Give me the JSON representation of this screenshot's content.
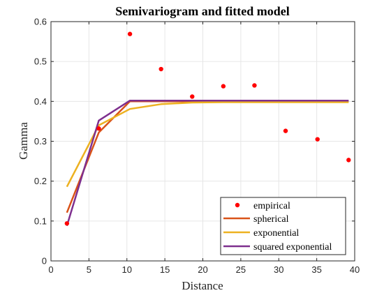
{
  "chart_data": {
    "type": "line",
    "title": "Semivariogram and fitted model",
    "xlabel": "Distance",
    "ylabel": "Gamma",
    "xlim": [
      0,
      40
    ],
    "ylim": [
      0,
      0.6
    ],
    "xticks": [
      "0",
      "5",
      "10",
      "15",
      "20",
      "25",
      "30",
      "35",
      "40"
    ],
    "yticks": [
      "0",
      "0.1",
      "0.2",
      "0.3",
      "0.4",
      "0.5",
      "0.6"
    ],
    "grid": true,
    "legend_position": "bottom-right",
    "empirical": {
      "name": "empirical",
      "color": "#ff0000",
      "x": [
        2.1,
        6.3,
        10.4,
        14.5,
        18.6,
        22.7,
        26.8,
        30.9,
        35.1,
        39.2
      ],
      "y": [
        0.094,
        0.332,
        0.569,
        0.481,
        0.412,
        0.438,
        0.44,
        0.326,
        0.305,
        0.253
      ]
    },
    "series": [
      {
        "name": "spherical",
        "color": "#d95319",
        "x": [
          2.1,
          6.3,
          10.4,
          14.5,
          18.6,
          22.7,
          26.8,
          30.9,
          35.1,
          39.2
        ],
        "y": [
          0.121,
          0.322,
          0.4,
          0.4,
          0.4,
          0.4,
          0.4,
          0.4,
          0.4,
          0.4
        ]
      },
      {
        "name": "exponential",
        "color": "#edb120",
        "x": [
          2.1,
          6.3,
          10.4,
          14.5,
          18.6,
          22.7,
          26.8,
          30.9,
          35.1,
          39.2
        ],
        "y": [
          0.186,
          0.34,
          0.381,
          0.393,
          0.397,
          0.398,
          0.398,
          0.398,
          0.398,
          0.398
        ]
      },
      {
        "name": "squared exponential",
        "color": "#7e2f8e",
        "x": [
          2.1,
          6.3,
          10.4,
          14.5,
          18.6,
          22.7,
          26.8,
          30.9,
          35.1,
          39.2
        ],
        "y": [
          0.088,
          0.352,
          0.402,
          0.402,
          0.402,
          0.402,
          0.402,
          0.402,
          0.402,
          0.402
        ]
      }
    ]
  }
}
